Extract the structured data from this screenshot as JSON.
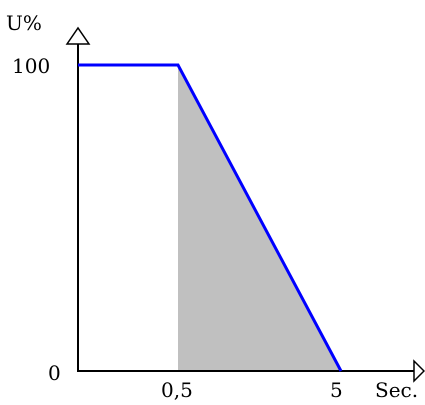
{
  "chart_data": {
    "type": "line",
    "ylabel": "U%",
    "xlabel": "Sec.",
    "y_tick_labels": [
      "100",
      "0"
    ],
    "x_tick_labels": [
      "0,5",
      "5"
    ],
    "series": [
      {
        "x": [
          0,
          0.5,
          5
        ],
        "y": [
          100,
          100,
          0
        ]
      }
    ],
    "shaded_region": {
      "x": [
        0.5,
        5
      ],
      "y_top": [
        100,
        0
      ]
    },
    "colors": {
      "line": "#0000ff",
      "fill": "#c0c0c0",
      "axes": "#000000"
    }
  }
}
